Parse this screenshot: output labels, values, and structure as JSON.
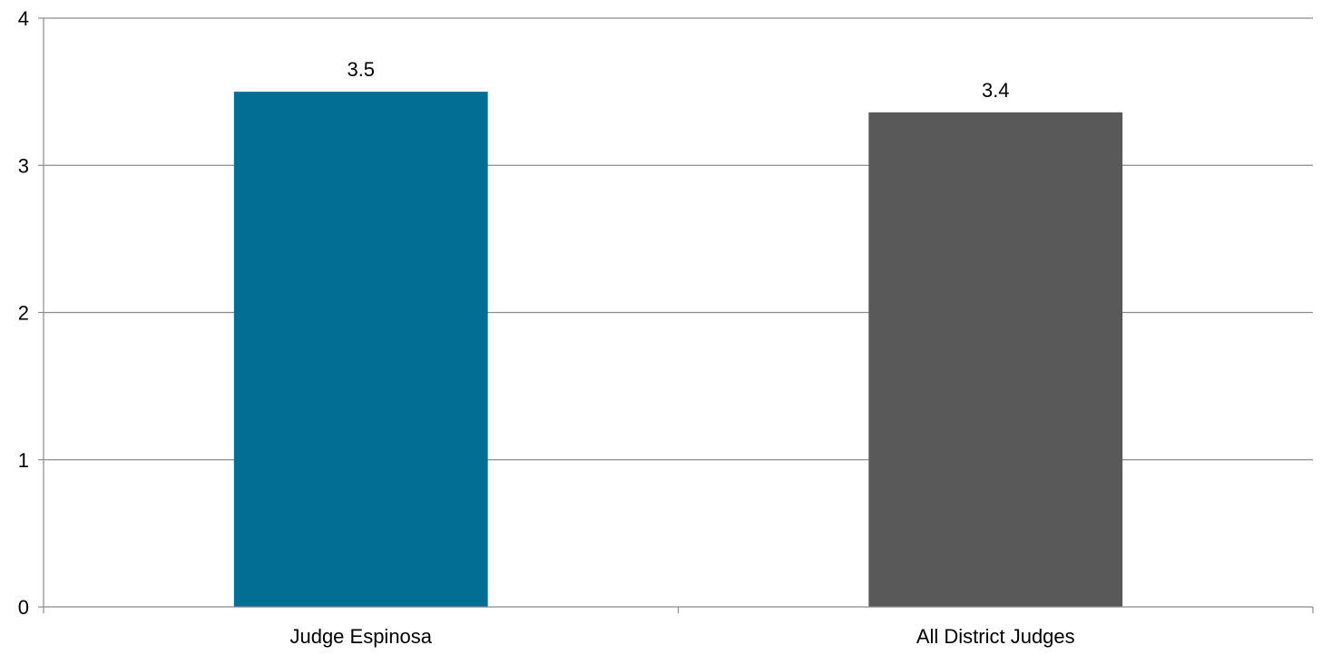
{
  "chart_data": {
    "type": "bar",
    "title": "",
    "xlabel": "",
    "ylabel": "",
    "categories": [
      "Judge Espinosa",
      "All District Judges"
    ],
    "values": [
      3.5,
      3.36
    ],
    "data_labels": [
      "3.5",
      "3.4"
    ],
    "bar_colors": [
      "#026e94",
      "#595959"
    ],
    "ylim": [
      0,
      4
    ],
    "yticks": [
      0,
      1,
      2,
      3,
      4
    ],
    "ytick_labels": [
      "0",
      "1",
      "2",
      "3",
      "4"
    ],
    "grid": true,
    "legend": "none"
  }
}
